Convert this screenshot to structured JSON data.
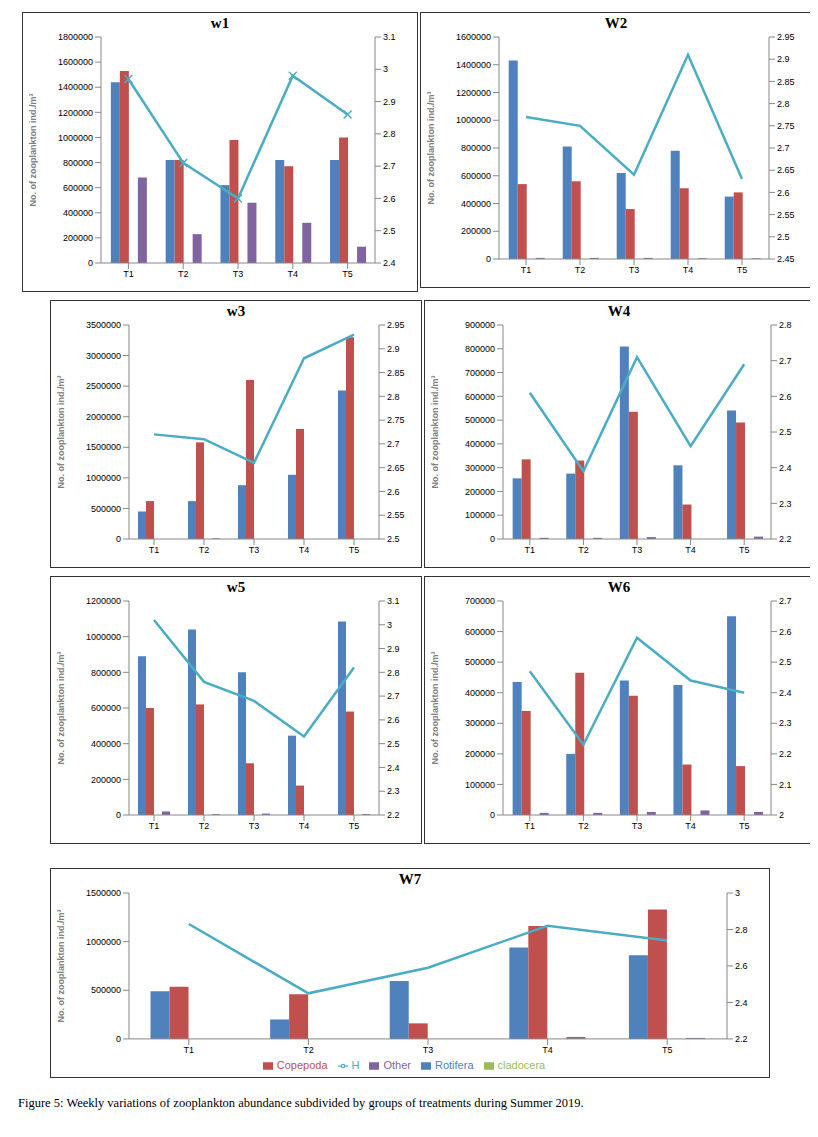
{
  "caption": "Figure 5: Weekly variations of zooplankton abundance subdivided by groups of treatments during Summer 2019.",
  "chart_data": [
    {
      "type": "bar",
      "title": "w1",
      "y_label": "No. of zooplankton ind./m³",
      "categories": [
        "T1",
        "T2",
        "T3",
        "T4",
        "T5"
      ],
      "ylim": [
        0,
        1800000
      ],
      "yticks": [
        0,
        200000,
        400000,
        600000,
        800000,
        1000000,
        1200000,
        1400000,
        1600000,
        1800000
      ],
      "y2lim": [
        2.4,
        3.1
      ],
      "y2ticks": [
        2.4,
        2.5,
        2.6,
        2.7,
        2.8,
        2.9,
        3,
        3.1
      ],
      "series": [
        {
          "name": "Rotifera",
          "color": "#4f81bd",
          "values": [
            1440000,
            820000,
            620000,
            820000,
            820000
          ]
        },
        {
          "name": "Copepoda",
          "color": "#c0504d",
          "values": [
            1530000,
            820000,
            980000,
            770000,
            1000000
          ]
        },
        {
          "name": "cladocera",
          "color": "#9bbb59",
          "values": [
            0,
            0,
            0,
            0,
            0
          ]
        },
        {
          "name": "Other",
          "color": "#8064a2",
          "values": [
            680000,
            230000,
            480000,
            320000,
            130000
          ]
        },
        {
          "name": "H",
          "type": "line",
          "axis": "y2",
          "color": "#4bacc6",
          "marker": "x",
          "values": [
            2.97,
            2.71,
            2.6,
            2.98,
            2.86
          ]
        }
      ]
    },
    {
      "type": "bar",
      "title": "W2",
      "y_label": "No. of zooplankton ind./m³",
      "categories": [
        "T1",
        "T2",
        "T3",
        "T4",
        "T5"
      ],
      "ylim": [
        0,
        1600000
      ],
      "yticks": [
        0,
        200000,
        400000,
        600000,
        800000,
        1000000,
        1200000,
        1400000,
        1600000
      ],
      "y2lim": [
        2.45,
        2.95
      ],
      "y2ticks": [
        2.45,
        2.5,
        2.55,
        2.6,
        2.65,
        2.7,
        2.75,
        2.8,
        2.85,
        2.9,
        2.95
      ],
      "series": [
        {
          "name": "Rotifera",
          "color": "#4f81bd",
          "values": [
            1430000,
            810000,
            620000,
            780000,
            450000
          ]
        },
        {
          "name": "Copepoda",
          "color": "#c0504d",
          "values": [
            540000,
            560000,
            360000,
            510000,
            480000
          ]
        },
        {
          "name": "cladocera",
          "color": "#9bbb59",
          "values": [
            0,
            0,
            0,
            0,
            0
          ]
        },
        {
          "name": "Other",
          "color": "#8064a2",
          "values": [
            8000,
            8000,
            8000,
            5000,
            5000
          ]
        },
        {
          "name": "H",
          "type": "line",
          "axis": "y2",
          "color": "#4bacc6",
          "values": [
            2.77,
            2.75,
            2.64,
            2.91,
            2.63
          ]
        }
      ]
    },
    {
      "type": "bar",
      "title": "w3",
      "y_label": "No. of zooplankton ind./m³",
      "categories": [
        "T1",
        "T2",
        "T3",
        "T4",
        "T5"
      ],
      "ylim": [
        0,
        3500000
      ],
      "yticks": [
        0,
        500000,
        1000000,
        1500000,
        2000000,
        2500000,
        3000000,
        3500000
      ],
      "y2lim": [
        2.5,
        2.95
      ],
      "y2ticks": [
        2.5,
        2.55,
        2.6,
        2.65,
        2.7,
        2.75,
        2.8,
        2.85,
        2.9,
        2.95
      ],
      "series": [
        {
          "name": "Rotifera",
          "color": "#4f81bd",
          "values": [
            450000,
            620000,
            880000,
            1050000,
            2430000
          ]
        },
        {
          "name": "Copepoda",
          "color": "#c0504d",
          "values": [
            620000,
            1580000,
            2600000,
            1800000,
            3300000
          ]
        },
        {
          "name": "cladocera",
          "color": "#9bbb59",
          "values": [
            0,
            0,
            0,
            0,
            0
          ]
        },
        {
          "name": "Other",
          "color": "#8064a2",
          "values": [
            0,
            10000,
            0,
            0,
            0
          ]
        },
        {
          "name": "H",
          "type": "line",
          "axis": "y2",
          "color": "#4bacc6",
          "values": [
            2.72,
            2.71,
            2.66,
            2.88,
            2.93
          ]
        }
      ]
    },
    {
      "type": "bar",
      "title": "W4",
      "y_label": "No. of zooplankton ind./m³",
      "categories": [
        "T1",
        "T2",
        "T3",
        "T4",
        "T5"
      ],
      "ylim": [
        0,
        900000
      ],
      "yticks": [
        0,
        100000,
        200000,
        300000,
        400000,
        500000,
        600000,
        700000,
        800000,
        900000
      ],
      "y2lim": [
        2.2,
        2.8
      ],
      "y2ticks": [
        2.2,
        2.3,
        2.4,
        2.5,
        2.6,
        2.7,
        2.8
      ],
      "series": [
        {
          "name": "Rotifera",
          "color": "#4f81bd",
          "values": [
            255000,
            275000,
            810000,
            310000,
            540000
          ]
        },
        {
          "name": "Copepoda",
          "color": "#c0504d",
          "values": [
            335000,
            330000,
            535000,
            145000,
            490000
          ]
        },
        {
          "name": "cladocera",
          "color": "#9bbb59",
          "values": [
            0,
            0,
            0,
            0,
            0
          ]
        },
        {
          "name": "Other",
          "color": "#8064a2",
          "values": [
            5000,
            5000,
            8000,
            0,
            10000
          ]
        },
        {
          "name": "H",
          "type": "line",
          "axis": "y2",
          "color": "#4bacc6",
          "values": [
            2.61,
            2.39,
            2.71,
            2.46,
            2.69
          ]
        }
      ]
    },
    {
      "type": "bar",
      "title": "w5",
      "y_label": "No. of zooplankton ind./m³",
      "categories": [
        "T1",
        "T2",
        "T3",
        "T4",
        "T5"
      ],
      "ylim": [
        0,
        1200000
      ],
      "yticks": [
        0,
        200000,
        400000,
        600000,
        800000,
        1000000,
        1200000
      ],
      "y2lim": [
        2.2,
        3.1
      ],
      "y2ticks": [
        2.2,
        2.3,
        2.4,
        2.5,
        2.6,
        2.7,
        2.8,
        2.9,
        3,
        3.1
      ],
      "series": [
        {
          "name": "Rotifera",
          "color": "#4f81bd",
          "values": [
            890000,
            1040000,
            800000,
            445000,
            1085000
          ]
        },
        {
          "name": "Copepoda",
          "color": "#c0504d",
          "values": [
            600000,
            620000,
            290000,
            165000,
            580000
          ]
        },
        {
          "name": "cladocera",
          "color": "#9bbb59",
          "values": [
            0,
            0,
            0,
            0,
            0
          ]
        },
        {
          "name": "Other",
          "color": "#8064a2",
          "values": [
            20000,
            5000,
            8000,
            0,
            5000
          ]
        },
        {
          "name": "H",
          "type": "line",
          "axis": "y2",
          "color": "#4bacc6",
          "values": [
            3.02,
            2.76,
            2.68,
            2.53,
            2.82
          ]
        }
      ]
    },
    {
      "type": "bar",
      "title": "W6",
      "y_label": "No. of zooplankton ind./m³",
      "categories": [
        "T1",
        "T2",
        "T3",
        "T4",
        "T5"
      ],
      "ylim": [
        0,
        700000
      ],
      "yticks": [
        0,
        100000,
        200000,
        300000,
        400000,
        500000,
        600000,
        700000
      ],
      "y2lim": [
        2,
        2.7
      ],
      "y2ticks": [
        2,
        2.1,
        2.2,
        2.3,
        2.4,
        2.5,
        2.6,
        2.7
      ],
      "series": [
        {
          "name": "Rotifera",
          "color": "#4f81bd",
          "values": [
            435000,
            200000,
            440000,
            425000,
            650000
          ]
        },
        {
          "name": "Copepoda",
          "color": "#c0504d",
          "values": [
            340000,
            465000,
            390000,
            165000,
            160000
          ]
        },
        {
          "name": "cladocera",
          "color": "#9bbb59",
          "values": [
            0,
            0,
            0,
            0,
            0
          ]
        },
        {
          "name": "Other",
          "color": "#8064a2",
          "values": [
            7000,
            7000,
            10000,
            15000,
            10000
          ]
        },
        {
          "name": "H",
          "type": "line",
          "axis": "y2",
          "color": "#4bacc6",
          "values": [
            2.47,
            2.23,
            2.58,
            2.44,
            2.4
          ]
        }
      ]
    },
    {
      "type": "bar",
      "title": "W7",
      "y_label": "No. of zooplankton ind./m³",
      "legend": "bottom",
      "categories": [
        "T1",
        "T2",
        "T3",
        "T4",
        "T5"
      ],
      "ylim": [
        0,
        1500000
      ],
      "yticks": [
        0,
        500000,
        1000000,
        1500000
      ],
      "y2lim": [
        2.2,
        3
      ],
      "y2ticks": [
        2.2,
        2.4,
        2.6,
        2.8,
        3
      ],
      "series": [
        {
          "name": "Rotifera",
          "color": "#4f81bd",
          "values": [
            490000,
            200000,
            595000,
            940000,
            860000
          ]
        },
        {
          "name": "Copepoda",
          "color": "#c0504d",
          "values": [
            535000,
            460000,
            160000,
            1160000,
            1330000
          ]
        },
        {
          "name": "cladocera",
          "color": "#9bbb59",
          "values": [
            0,
            0,
            0,
            0,
            0
          ]
        },
        {
          "name": "Other",
          "color": "#8064a2",
          "values": [
            0,
            0,
            0,
            20000,
            10000
          ]
        },
        {
          "name": "H",
          "type": "line",
          "axis": "y2",
          "color": "#4bacc6",
          "values": [
            2.83,
            2.45,
            2.59,
            2.82,
            2.74
          ]
        }
      ]
    }
  ]
}
